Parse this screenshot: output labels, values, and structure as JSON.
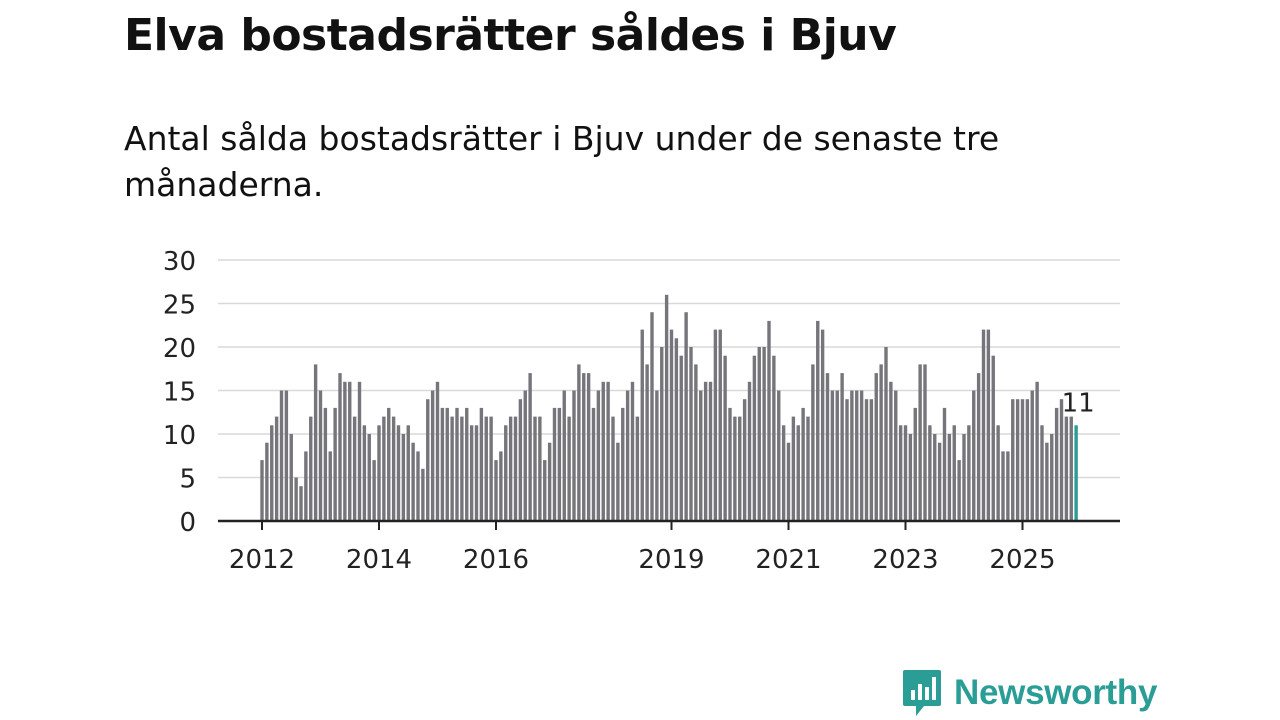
{
  "title": "Elva bostadsrätter såldes i Bjuv",
  "subtitle": "Antal sålda bostadsrätter i Bjuv under de senaste tre månaderna.",
  "brand": {
    "name": "Newsworthy",
    "color": "#2a9d96"
  },
  "colors": {
    "bar": "#76757b",
    "highlight": "#2a9d96",
    "grid": "#d9d9d9",
    "axis": "#222222",
    "text": "#222222"
  },
  "chart_data": {
    "type": "bar",
    "title": "Elva bostadsrätter såldes i Bjuv",
    "xlabel": "",
    "ylabel": "",
    "ylim": [
      0,
      30
    ],
    "yticks": [
      0,
      5,
      10,
      15,
      20,
      25,
      30
    ],
    "grid": true,
    "start": "2012-01",
    "xtick_labels": [
      {
        "year": 2012,
        "label": "2012"
      },
      {
        "year": 2014,
        "label": "2014"
      },
      {
        "year": 2016,
        "label": "2016"
      },
      {
        "year": 2019,
        "label": "2019"
      },
      {
        "year": 2021,
        "label": "2021"
      },
      {
        "year": 2023,
        "label": "2023"
      },
      {
        "year": 2025,
        "label": "2025"
      }
    ],
    "annotation": {
      "label": "11",
      "value": 11
    },
    "values": [
      7,
      9,
      11,
      12,
      15,
      15,
      10,
      5,
      4,
      8,
      12,
      18,
      15,
      13,
      8,
      13,
      17,
      16,
      16,
      12,
      16,
      11,
      10,
      7,
      11,
      12,
      13,
      12,
      11,
      10,
      11,
      9,
      8,
      6,
      14,
      15,
      16,
      13,
      13,
      12,
      13,
      12,
      13,
      11,
      11,
      13,
      12,
      12,
      7,
      8,
      11,
      12,
      12,
      14,
      15,
      17,
      12,
      12,
      7,
      9,
      13,
      13,
      15,
      12,
      15,
      18,
      17,
      17,
      13,
      15,
      16,
      16,
      12,
      9,
      13,
      15,
      16,
      12,
      22,
      18,
      24,
      15,
      20,
      26,
      22,
      21,
      19,
      24,
      20,
      18,
      15,
      16,
      16,
      22,
      22,
      19,
      13,
      12,
      12,
      14,
      16,
      19,
      20,
      20,
      23,
      19,
      15,
      11,
      9,
      12,
      11,
      13,
      12,
      18,
      23,
      22,
      17,
      15,
      15,
      17,
      14,
      15,
      15,
      15,
      14,
      14,
      17,
      18,
      20,
      16,
      15,
      11,
      11,
      10,
      13,
      18,
      18,
      11,
      10,
      9,
      13,
      10,
      11,
      7,
      10,
      11,
      15,
      17,
      22,
      22,
      19,
      11,
      8,
      8,
      14,
      14,
      14,
      14,
      15,
      16,
      11,
      9,
      10,
      13,
      14,
      12,
      12,
      11
    ]
  }
}
